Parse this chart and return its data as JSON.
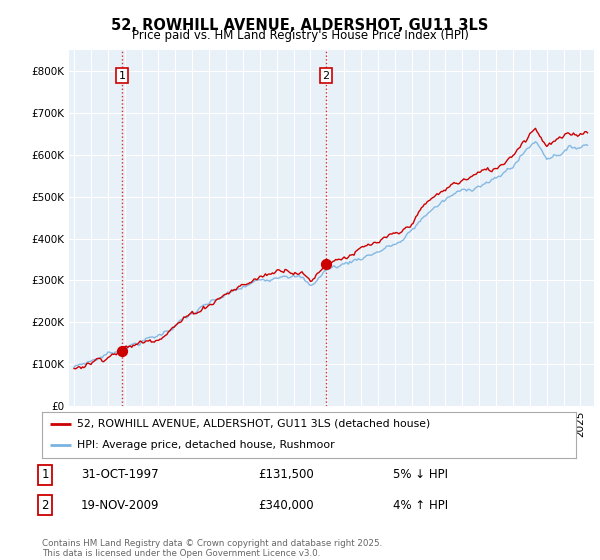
{
  "title": "52, ROWHILL AVENUE, ALDERSHOT, GU11 3LS",
  "subtitle": "Price paid vs. HM Land Registry's House Price Index (HPI)",
  "ylim": [
    0,
    850000
  ],
  "yticks": [
    0,
    100000,
    200000,
    300000,
    400000,
    500000,
    600000,
    700000,
    800000
  ],
  "sale1_year": 1997.833,
  "sale1_price": 131500,
  "sale1_date_str": "31-OCT-1997",
  "sale1_pct": "5% ↓ HPI",
  "sale2_year": 2009.916,
  "sale2_price": 340000,
  "sale2_date_str": "19-NOV-2009",
  "sale2_pct": "4% ↑ HPI",
  "hpi_color": "#7ab3e0",
  "sale_color": "#cc0000",
  "vline_color": "#cc0000",
  "legend_entry1": "52, ROWHILL AVENUE, ALDERSHOT, GU11 3LS (detached house)",
  "legend_entry2": "HPI: Average price, detached house, Rushmoor",
  "footer": "Contains HM Land Registry data © Crown copyright and database right 2025.\nThis data is licensed under the Open Government Licence v3.0.",
  "background_color": "#ffffff",
  "plot_bg_color": "#e8f0f8",
  "grid_color": "#ffffff"
}
